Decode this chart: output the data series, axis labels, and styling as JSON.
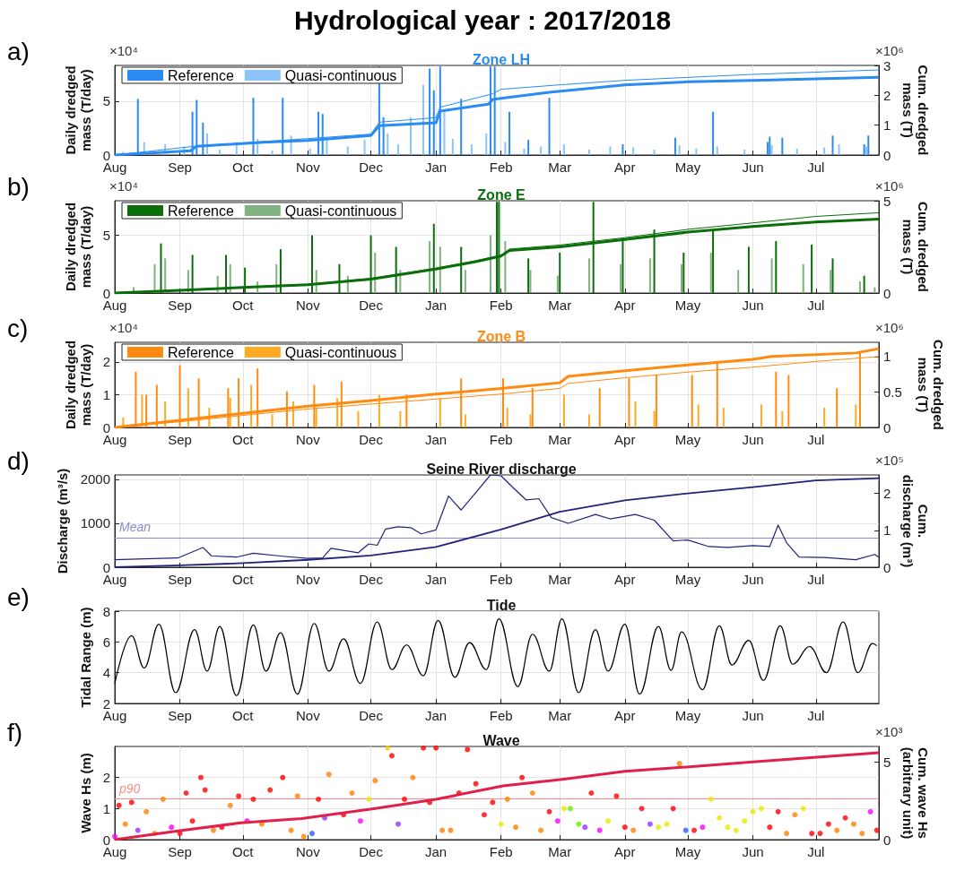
{
  "chart_data": [
    {
      "type": "bar",
      "subtitle": "Hydrological year : 2017/2018",
      "title": "Zone LH",
      "ylabel": "Daily dredged\nmass (T/day)",
      "y2label": "Cum. dredged\nmass (T)",
      "annotations": [
        "a)",
        "×10⁴",
        "×10⁶"
      ],
      "legend": "top left",
      "grid": true,
      "xlim": [
        "2017-08-01",
        "2018-07-31"
      ],
      "xticks": [
        {
          "value": "2017-08-01",
          "label": "Aug"
        },
        {
          "value": "2017-09-01",
          "label": "Sep"
        },
        {
          "value": "2017-10-01",
          "label": "Oct"
        },
        {
          "value": "2017-11-01",
          "label": "Nov"
        },
        {
          "value": "2017-12-01",
          "label": "Dec"
        },
        {
          "value": "2018-01-01",
          "label": "Jan"
        },
        {
          "value": "2018-02-01",
          "label": "Feb"
        },
        {
          "value": "2018-03-01",
          "label": "Mar"
        },
        {
          "value": "2018-04-01",
          "label": "Apr"
        },
        {
          "value": "2018-05-01",
          "label": "May"
        },
        {
          "value": "2018-06-01",
          "label": "Jun"
        },
        {
          "value": "2018-07-01",
          "label": "Jul"
        }
      ],
      "ylim": [
        0,
        8.3
      ],
      "yticks": [
        0,
        5
      ],
      "y2lim": [
        0,
        3
      ],
      "y2ticks": [
        0,
        1,
        2,
        3
      ],
      "series": [
        {
          "name": "Reference",
          "color": "#2a8bf2",
          "x": [
            "2017-08-12",
            "2017-09-07",
            "2017-09-09",
            "2017-09-12",
            "2017-10-06",
            "2017-10-20",
            "2017-11-06",
            "2017-11-08",
            "2017-12-05",
            "2017-12-07",
            "2017-12-29",
            "2017-12-31",
            "2018-01-03",
            "2018-01-13",
            "2018-01-27",
            "2018-01-29",
            "2018-02-05",
            "2018-02-14",
            "2018-02-24",
            "2018-03-31",
            "2018-04-25",
            "2018-05-13",
            "2018-06-08",
            "2018-06-09",
            "2018-06-15",
            "2018-07-09",
            "2018-07-24",
            "2018-07-26"
          ],
          "values": [
            5.2,
            4.0,
            5.1,
            3.0,
            5.3,
            5.3,
            4.0,
            3.8,
            8.2,
            3.5,
            8.0,
            6.0,
            8.2,
            5.2,
            8.2,
            8.2,
            4.0,
            1.4,
            5.3,
            1.0,
            1.6,
            4.0,
            1.2,
            1.7,
            1.6,
            1.8,
            1.0,
            1.8
          ]
        },
        {
          "name": "Quasi-continuous",
          "color": "#8cc4f8",
          "x": [
            "2017-08-05",
            "2017-08-15",
            "2017-08-25",
            "2017-09-03",
            "2017-09-14",
            "2017-09-20",
            "2017-09-28",
            "2017-10-08",
            "2017-10-15",
            "2017-10-24",
            "2017-11-02",
            "2017-11-10",
            "2017-11-20",
            "2017-11-28",
            "2017-12-09",
            "2017-12-14",
            "2017-12-20",
            "2017-12-26",
            "2018-01-05",
            "2018-01-09",
            "2018-01-18",
            "2018-01-25",
            "2018-02-03",
            "2018-02-12",
            "2018-02-20",
            "2018-03-03",
            "2018-03-15",
            "2018-03-25",
            "2018-04-05",
            "2018-04-15",
            "2018-04-27",
            "2018-05-05",
            "2018-05-15",
            "2018-05-28",
            "2018-06-10",
            "2018-06-22",
            "2018-07-05",
            "2018-07-12",
            "2018-07-25"
          ],
          "values": [
            0.3,
            1.2,
            1.0,
            0.8,
            2.0,
            0.5,
            1.2,
            1.5,
            0.4,
            1.8,
            0.6,
            1.5,
            0.8,
            1.4,
            2.0,
            1.0,
            3.5,
            6.5,
            4.0,
            1.5,
            1.0,
            2.0,
            1.2,
            0.6,
            0.8,
            1.0,
            0.5,
            0.8,
            0.7,
            0.5,
            0.9,
            0.6,
            0.8,
            0.5,
            0.9,
            0.6,
            0.7,
            1.0,
            0.8
          ]
        },
        {
          "type": "line",
          "axis": "y2",
          "color": "#2a8bf2",
          "x": [
            "2017-08-01",
            "2017-09-06",
            "2017-09-09",
            "2017-10-11",
            "2017-11-01",
            "2017-12-01",
            "2017-12-05",
            "2018-01-01",
            "2018-01-03",
            "2018-01-26",
            "2018-01-28",
            "2018-02-01",
            "2018-02-24",
            "2018-04-01",
            "2018-05-01",
            "2018-06-01",
            "2018-07-31"
          ],
          "values": [
            0,
            0.14,
            0.29,
            0.43,
            0.49,
            0.65,
            0.98,
            1.08,
            1.47,
            1.7,
            1.86,
            1.9,
            2.1,
            2.35,
            2.45,
            2.5,
            2.6
          ]
        },
        {
          "type": "line",
          "axis": "y2",
          "color": "#2a8bf2",
          "x": [
            "2017-08-01",
            "2017-09-09",
            "2017-11-01",
            "2017-12-01",
            "2017-12-05",
            "2018-01-01",
            "2018-01-03",
            "2018-01-28",
            "2018-02-01",
            "2018-03-01",
            "2018-04-01",
            "2018-05-01",
            "2018-06-01",
            "2018-07-31"
          ],
          "values": [
            0,
            0.3,
            0.55,
            0.7,
            1.1,
            1.25,
            1.6,
            2.05,
            2.2,
            2.35,
            2.5,
            2.6,
            2.7,
            2.85
          ]
        }
      ]
    },
    {
      "type": "bar",
      "title": "Zone E",
      "ylabel": "Daily dredged\nmass (T/day)",
      "y2label": "Cum. dredged\nmass (T)",
      "annotations": [
        "b)",
        "×10⁴",
        "×10⁶"
      ],
      "legend": "top left",
      "grid": true,
      "xlim": [
        "2017-08-01",
        "2018-07-31"
      ],
      "xticks": [
        {
          "value": "2017-08-01",
          "label": "Aug"
        },
        {
          "value": "2017-09-01",
          "label": "Sep"
        },
        {
          "value": "2017-10-01",
          "label": "Oct"
        },
        {
          "value": "2017-11-01",
          "label": "Nov"
        },
        {
          "value": "2017-12-01",
          "label": "Dec"
        },
        {
          "value": "2018-01-01",
          "label": "Jan"
        },
        {
          "value": "2018-02-01",
          "label": "Feb"
        },
        {
          "value": "2018-03-01",
          "label": "Mar"
        },
        {
          "value": "2018-04-01",
          "label": "Apr"
        },
        {
          "value": "2018-05-01",
          "label": "May"
        },
        {
          "value": "2018-06-01",
          "label": "Jun"
        },
        {
          "value": "2018-07-01",
          "label": "Jul"
        }
      ],
      "ylim": [
        0,
        8
      ],
      "yticks": [
        0,
        5
      ],
      "y2lim": [
        0,
        5
      ],
      "y2ticks": [
        0,
        5
      ],
      "series": [
        {
          "name": "Reference",
          "color": "#0a6e0a",
          "x": [
            "2017-08-23",
            "2017-09-07",
            "2017-09-23",
            "2017-10-02",
            "2017-10-19",
            "2017-11-03",
            "2017-11-16",
            "2017-12-01",
            "2017-12-13",
            "2017-12-31",
            "2018-01-13",
            "2018-01-30",
            "2018-01-31",
            "2018-02-14",
            "2018-03-01",
            "2018-03-17",
            "2018-03-31",
            "2018-04-15",
            "2018-04-29",
            "2018-05-13",
            "2018-05-30",
            "2018-06-12",
            "2018-06-29",
            "2018-07-09",
            "2018-07-24"
          ],
          "values": [
            4.3,
            3.3,
            3.3,
            2.2,
            3.8,
            5.0,
            2.5,
            5.0,
            4.0,
            6.0,
            4.0,
            7.9,
            7.9,
            3.0,
            3.5,
            7.9,
            4.5,
            5.5,
            3.5,
            5.5,
            4.0,
            4.5,
            4.2,
            3.0,
            1.5
          ]
        },
        {
          "name": "Quasi-continuous",
          "color": "#7fb27f",
          "x": [
            "2017-08-10",
            "2017-08-20",
            "2017-08-25",
            "2017-09-05",
            "2017-09-19",
            "2017-09-25",
            "2017-10-08",
            "2017-10-17",
            "2017-11-05",
            "2017-11-20",
            "2017-12-03",
            "2017-12-15",
            "2017-12-29",
            "2018-01-03",
            "2018-01-15",
            "2018-01-27",
            "2018-02-03",
            "2018-02-15",
            "2018-02-28",
            "2018-03-15",
            "2018-03-30",
            "2018-04-13",
            "2018-04-28",
            "2018-05-12",
            "2018-05-25",
            "2018-06-10",
            "2018-06-25",
            "2018-07-08",
            "2018-07-22",
            "2018-07-29"
          ],
          "values": [
            0.5,
            2.5,
            3.0,
            2.0,
            1.5,
            2.5,
            1.0,
            2.5,
            2.0,
            1.5,
            3.5,
            2.0,
            4.5,
            4.0,
            2.0,
            5.0,
            4.5,
            2.0,
            1.5,
            3.0,
            2.5,
            3.0,
            2.5,
            3.5,
            2.0,
            3.0,
            2.5,
            2.0,
            1.0,
            0.5
          ]
        },
        {
          "type": "line",
          "axis": "y2",
          "color": "#0a6e0a",
          "x": [
            "2017-08-01",
            "2017-09-01",
            "2017-10-01",
            "2017-11-01",
            "2017-12-01",
            "2018-01-01",
            "2018-01-20",
            "2018-02-01",
            "2018-02-05",
            "2018-03-01",
            "2018-04-01",
            "2018-05-01",
            "2018-06-01",
            "2018-07-01",
            "2018-07-31"
          ],
          "values": [
            0,
            0.15,
            0.3,
            0.45,
            0.75,
            1.3,
            1.7,
            2.0,
            2.3,
            2.5,
            2.9,
            3.3,
            3.6,
            3.85,
            4.0
          ]
        },
        {
          "type": "line",
          "axis": "y2",
          "color": "#0a6e0a",
          "x": [
            "2017-08-01",
            "2017-09-01",
            "2017-10-01",
            "2017-11-01",
            "2017-12-01",
            "2018-01-01",
            "2018-01-20",
            "2018-02-01",
            "2018-02-05",
            "2018-03-01",
            "2018-04-01",
            "2018-05-01",
            "2018-06-01",
            "2018-07-01",
            "2018-07-31"
          ],
          "values": [
            0,
            0.16,
            0.32,
            0.48,
            0.79,
            1.35,
            1.75,
            2.05,
            2.38,
            2.6,
            3.0,
            3.45,
            3.8,
            4.15,
            4.35
          ]
        }
      ]
    },
    {
      "type": "bar",
      "title": "Zone B",
      "ylabel": "Daily dredged\nmass (T/day)",
      "y2label": "Cum. dredged\nmass (T)",
      "annotations": [
        "c)",
        "×10⁴",
        "×10⁶"
      ],
      "legend": "top left",
      "grid": true,
      "xlim": [
        "2017-08-01",
        "2018-07-31"
      ],
      "xticks": [
        {
          "value": "2017-08-01",
          "label": "Aug"
        },
        {
          "value": "2017-09-01",
          "label": "Sep"
        },
        {
          "value": "2017-10-01",
          "label": "Oct"
        },
        {
          "value": "2017-11-01",
          "label": "Nov"
        },
        {
          "value": "2017-12-01",
          "label": "Dec"
        },
        {
          "value": "2018-01-01",
          "label": "Jan"
        },
        {
          "value": "2018-02-01",
          "label": "Feb"
        },
        {
          "value": "2018-03-01",
          "label": "Mar"
        },
        {
          "value": "2018-04-01",
          "label": "Apr"
        },
        {
          "value": "2018-05-01",
          "label": "May"
        },
        {
          "value": "2018-06-01",
          "label": "Jun"
        },
        {
          "value": "2018-07-01",
          "label": "Jul"
        }
      ],
      "ylim": [
        0,
        2.6
      ],
      "yticks": [
        0,
        1,
        2
      ],
      "y2lim": [
        0,
        1.2
      ],
      "y2ticks": [
        0,
        0.5,
        1
      ],
      "series": [
        {
          "name": "Reference",
          "color": "#ff8a10",
          "x": [
            "2017-08-11",
            "2017-08-16",
            "2017-08-21",
            "2017-09-01",
            "2017-09-10",
            "2017-09-24",
            "2017-09-29",
            "2017-10-08",
            "2017-10-22",
            "2017-11-04",
            "2017-11-17",
            "2017-12-03",
            "2017-12-18",
            "2018-01-02",
            "2018-01-13",
            "2018-02-02",
            "2018-02-16",
            "2018-02-28",
            "2018-03-02",
            "2018-03-20",
            "2018-04-03",
            "2018-04-16",
            "2018-05-03",
            "2018-05-15",
            "2018-06-12",
            "2018-06-18",
            "2018-07-11",
            "2018-07-22"
          ],
          "values": [
            1.7,
            1.0,
            1.3,
            1.9,
            1.5,
            1.2,
            1.5,
            1.8,
            1.1,
            1.3,
            1.4,
            null,
            1.0,
            null,
            1.5,
            1.5,
            1.2,
            null,
            null,
            1.2,
            1.5,
            1.6,
            1.6,
            2.0,
            1.7,
            1.6,
            1.2,
            2.3
          ]
        },
        {
          "name": "Quasi-continuous",
          "color": "#ffaa22",
          "x": [
            "2017-08-05",
            "2017-08-14",
            "2017-08-25",
            "2017-09-05",
            "2017-09-15",
            "2017-09-25",
            "2017-10-05",
            "2017-10-15",
            "2017-10-25",
            "2017-11-05",
            "2017-11-15",
            "2017-11-25",
            "2017-12-05",
            "2017-12-15",
            "2018-01-03",
            "2018-01-15",
            "2018-02-04",
            "2018-02-15",
            "2018-03-03",
            "2018-03-15",
            "2018-04-06",
            "2018-04-15",
            "2018-05-06",
            "2018-05-18",
            "2018-06-05",
            "2018-06-15",
            "2018-07-05",
            "2018-07-20"
          ],
          "values": [
            0.3,
            1.0,
            0.8,
            1.2,
            0.6,
            0.9,
            1.3,
            0.4,
            0.8,
            0.6,
            0.9,
            0.5,
            1.0,
            0.5,
            0.9,
            0.4,
            0.6,
            0.4,
            1.0,
            0.4,
            0.8,
            0.5,
            0.7,
            0.6,
            0.7,
            0.5,
            0.6,
            0.7
          ]
        },
        {
          "type": "line",
          "axis": "y2",
          "color": "#ff8a10",
          "x": [
            "2017-08-01",
            "2017-09-01",
            "2017-10-01",
            "2017-11-01",
            "2017-12-01",
            "2018-01-01",
            "2018-02-01",
            "2018-03-01",
            "2018-03-05",
            "2018-04-01",
            "2018-05-01",
            "2018-06-01",
            "2018-06-10",
            "2018-07-20",
            "2018-07-31"
          ],
          "values": [
            0,
            0.1,
            0.2,
            0.3,
            0.38,
            0.47,
            0.55,
            0.63,
            0.72,
            0.8,
            0.88,
            0.96,
            1.0,
            1.05,
            1.11
          ]
        },
        {
          "type": "line",
          "axis": "y2",
          "color": "#ff8a10",
          "x": [
            "2017-08-01",
            "2017-09-01",
            "2017-10-01",
            "2017-11-01",
            "2017-12-01",
            "2018-01-01",
            "2018-02-01",
            "2018-03-01",
            "2018-03-05",
            "2018-04-01",
            "2018-05-01",
            "2018-06-01",
            "2018-07-01",
            "2018-07-31"
          ],
          "values": [
            0,
            0.08,
            0.17,
            0.26,
            0.33,
            0.4,
            0.47,
            0.55,
            0.62,
            0.7,
            0.78,
            0.85,
            0.93,
            1.0
          ]
        }
      ]
    },
    {
      "type": "line",
      "title": "Seine River discharge",
      "ylabel": "Discharge (m³/s)",
      "y2label": "Cum.\ndischarge (m³)",
      "annotations": [
        "d)",
        "×10⁵"
      ],
      "grid": true,
      "xlim": [
        "2017-08-01",
        "2018-07-31"
      ],
      "xticks": [
        {
          "value": "2017-08-01",
          "label": "Aug"
        },
        {
          "value": "2017-09-01",
          "label": "Sep"
        },
        {
          "value": "2017-10-01",
          "label": "Oct"
        },
        {
          "value": "2017-11-01",
          "label": "Nov"
        },
        {
          "value": "2017-12-01",
          "label": "Dec"
        },
        {
          "value": "2018-01-01",
          "label": "Jan"
        },
        {
          "value": "2018-02-01",
          "label": "Feb"
        },
        {
          "value": "2018-03-01",
          "label": "Mar"
        },
        {
          "value": "2018-04-01",
          "label": "Apr"
        },
        {
          "value": "2018-05-01",
          "label": "May"
        },
        {
          "value": "2018-06-01",
          "label": "Jun"
        },
        {
          "value": "2018-07-01",
          "label": "Jul"
        }
      ],
      "ylim": [
        0,
        2100
      ],
      "yticks": [
        0,
        1000,
        2000
      ],
      "y2lim": [
        0,
        2.5
      ],
      "y2ticks": [
        0,
        1,
        2
      ],
      "ref_lines": [
        {
          "axis": "y",
          "value": 670,
          "label": "Mean",
          "color": "#8a8ad0"
        }
      ],
      "series": [
        {
          "color": "#23237a",
          "x": [
            "2017-08-01",
            "2017-08-15",
            "2017-08-31",
            "2017-09-12",
            "2017-09-16",
            "2017-09-28",
            "2017-10-06",
            "2017-10-20",
            "2017-11-01",
            "2017-11-08",
            "2017-11-12",
            "2017-11-25",
            "2017-11-30",
            "2017-12-04",
            "2017-12-08",
            "2017-12-14",
            "2017-12-20",
            "2017-12-25",
            "2018-01-01",
            "2018-01-07",
            "2018-01-13",
            "2018-01-20",
            "2018-01-27",
            "2018-02-01",
            "2018-02-07",
            "2018-02-13",
            "2018-02-19",
            "2018-02-25",
            "2018-03-05",
            "2018-03-18",
            "2018-03-25",
            "2018-04-06",
            "2018-04-15",
            "2018-04-24",
            "2018-05-01",
            "2018-05-11",
            "2018-05-20",
            "2018-06-01",
            "2018-06-09",
            "2018-06-13",
            "2018-06-17",
            "2018-06-23",
            "2018-07-05",
            "2018-07-20",
            "2018-07-29",
            "2018-07-31"
          ],
          "values": [
            170,
            190,
            210,
            450,
            260,
            230,
            320,
            250,
            200,
            210,
            430,
            330,
            530,
            500,
            870,
            920,
            900,
            760,
            850,
            1620,
            1300,
            1700,
            2100,
            2080,
            1800,
            1530,
            1560,
            1130,
            1000,
            1200,
            1100,
            1200,
            1070,
            600,
            620,
            470,
            450,
            490,
            470,
            960,
            560,
            230,
            220,
            170,
            290,
            230
          ]
        },
        {
          "axis": "y2",
          "color": "#23237a",
          "x": [
            "2017-08-01",
            "2017-09-01",
            "2017-10-01",
            "2017-11-01",
            "2017-12-01",
            "2018-01-01",
            "2018-02-01",
            "2018-03-01",
            "2018-04-01",
            "2018-05-01",
            "2018-06-01",
            "2018-07-01",
            "2018-07-31"
          ],
          "values": [
            0,
            0.05,
            0.11,
            0.2,
            0.32,
            0.55,
            1.02,
            1.5,
            1.81,
            2.0,
            2.17,
            2.35,
            2.41
          ]
        }
      ]
    },
    {
      "type": "line",
      "title": "Tide",
      "ylabel": "Tidal Range (m)",
      "annotations": [
        "e)"
      ],
      "grid": true,
      "xlim": [
        "2017-08-01",
        "2018-07-31"
      ],
      "xticks": [
        {
          "value": "2017-08-01",
          "label": "Aug"
        },
        {
          "value": "2017-09-01",
          "label": "Sep"
        },
        {
          "value": "2017-10-01",
          "label": "Oct"
        },
        {
          "value": "2017-11-01",
          "label": "Nov"
        },
        {
          "value": "2017-12-01",
          "label": "Dec"
        },
        {
          "value": "2018-01-01",
          "label": "Jan"
        },
        {
          "value": "2018-02-01",
          "label": "Feb"
        },
        {
          "value": "2018-03-01",
          "label": "Mar"
        },
        {
          "value": "2018-04-01",
          "label": "Apr"
        },
        {
          "value": "2018-05-01",
          "label": "May"
        },
        {
          "value": "2018-06-01",
          "label": "Jun"
        },
        {
          "value": "2018-07-01",
          "label": "Jul"
        }
      ],
      "ylim": [
        2,
        8
      ],
      "yticks": [
        2,
        4,
        6,
        8
      ],
      "series": [
        {
          "color": "#000000",
          "x": [
            "2017-08-01",
            "2017-08-09",
            "2017-08-15",
            "2017-08-22",
            "2017-08-30",
            "2017-09-08",
            "2017-09-14",
            "2017-09-20",
            "2017-09-28",
            "2017-10-06",
            "2017-10-12",
            "2017-10-19",
            "2017-10-27",
            "2017-11-04",
            "2017-11-11",
            "2017-11-18",
            "2017-11-26",
            "2017-12-04",
            "2017-12-11",
            "2017-12-18",
            "2017-12-26",
            "2018-01-02",
            "2018-01-10",
            "2018-01-17",
            "2018-01-25",
            "2018-01-31",
            "2018-02-09",
            "2018-02-16",
            "2018-02-24",
            "2018-03-02",
            "2018-03-10",
            "2018-03-18",
            "2018-03-24",
            "2018-04-01",
            "2018-04-08",
            "2018-04-17",
            "2018-04-23",
            "2018-04-28",
            "2018-05-08",
            "2018-05-16",
            "2018-05-22",
            "2018-05-30",
            "2018-06-06",
            "2018-06-14",
            "2018-06-20",
            "2018-06-28",
            "2018-07-06",
            "2018-07-14",
            "2018-07-21",
            "2018-07-28",
            "2018-07-30"
          ],
          "values": [
            3.3,
            6.4,
            4.3,
            7.15,
            2.7,
            6.8,
            4.1,
            7.0,
            2.5,
            7.1,
            4.1,
            6.6,
            2.6,
            7.2,
            4.1,
            6.2,
            3.3,
            7.3,
            4.2,
            5.8,
            3.8,
            7.4,
            3.7,
            5.95,
            4.2,
            7.5,
            3.1,
            6.5,
            4.1,
            7.5,
            2.7,
            6.8,
            4.1,
            7.15,
            2.6,
            7.0,
            4.15,
            6.65,
            2.9,
            7.05,
            4.5,
            6.1,
            3.5,
            7.05,
            4.55,
            5.7,
            4.0,
            7.3,
            4.0,
            5.9,
            5.75
          ]
        }
      ]
    },
    {
      "type": "scatter",
      "title": "Wave",
      "ylabel": "Wave Hs (m)",
      "y2label": "Cum. wave Hs\n(arbitrary unit)",
      "annotations": [
        "f)",
        "×10³"
      ],
      "grid": true,
      "xlim": [
        "2017-08-01",
        "2018-07-31"
      ],
      "xticks": [
        {
          "value": "2017-08-01",
          "label": "Aug"
        },
        {
          "value": "2017-09-01",
          "label": "Sep"
        },
        {
          "value": "2017-10-01",
          "label": "Oct"
        },
        {
          "value": "2017-11-01",
          "label": "Nov"
        },
        {
          "value": "2017-12-01",
          "label": "Dec"
        },
        {
          "value": "2018-01-01",
          "label": "Jan"
        },
        {
          "value": "2018-02-01",
          "label": "Feb"
        },
        {
          "value": "2018-03-01",
          "label": "Mar"
        },
        {
          "value": "2018-04-01",
          "label": "Apr"
        },
        {
          "value": "2018-05-01",
          "label": "May"
        },
        {
          "value": "2018-06-01",
          "label": "Jun"
        },
        {
          "value": "2018-07-01",
          "label": "Jul"
        }
      ],
      "ylim": [
        0,
        3
      ],
      "yticks": [
        0,
        1,
        2
      ],
      "y2lim": [
        0,
        6
      ],
      "y2ticks": [
        0,
        5
      ],
      "ref_lines": [
        {
          "axis": "y",
          "value": 1.31,
          "label": "p90",
          "color": "#ff8a8a"
        }
      ],
      "series": [
        {
          "marker": "circle",
          "x": [
            "2017-08-01",
            "2017-08-03",
            "2017-08-06",
            "2017-08-09",
            "2017-08-12",
            "2017-08-16",
            "2017-08-20",
            "2017-08-24",
            "2017-08-28",
            "2017-09-01",
            "2017-09-04",
            "2017-09-07",
            "2017-09-11",
            "2017-09-13",
            "2017-09-17",
            "2017-09-21",
            "2017-09-25",
            "2017-09-29",
            "2017-10-03",
            "2017-10-06",
            "2017-10-10",
            "2017-10-14",
            "2017-10-20",
            "2017-10-24",
            "2017-10-27",
            "2017-10-30",
            "2017-11-03",
            "2017-11-06",
            "2017-11-09",
            "2017-11-11",
            "2017-11-18",
            "2017-11-22",
            "2017-11-26",
            "2017-11-30",
            "2017-12-03",
            "2017-12-09",
            "2017-12-11",
            "2017-12-14",
            "2017-12-17",
            "2017-12-21",
            "2017-12-26",
            "2017-12-29",
            "2018-01-01",
            "2018-01-04",
            "2018-01-08",
            "2018-01-12",
            "2018-01-16",
            "2018-01-20",
            "2018-01-24",
            "2018-01-28",
            "2018-02-01",
            "2018-02-04",
            "2018-02-08",
            "2018-02-11",
            "2018-02-16",
            "2018-02-20",
            "2018-02-24",
            "2018-02-28",
            "2018-03-03",
            "2018-03-06",
            "2018-03-10",
            "2018-03-13",
            "2018-03-16",
            "2018-03-20",
            "2018-03-24",
            "2018-03-28",
            "2018-04-01",
            "2018-04-05",
            "2018-04-09",
            "2018-04-13",
            "2018-04-17",
            "2018-04-21",
            "2018-04-24",
            "2018-04-27",
            "2018-04-30",
            "2018-05-04",
            "2018-05-08",
            "2018-05-12",
            "2018-05-16",
            "2018-05-20",
            "2018-05-24",
            "2018-05-28",
            "2018-06-01",
            "2018-06-05",
            "2018-06-09",
            "2018-06-13",
            "2018-06-17",
            "2018-06-21",
            "2018-06-25",
            "2018-06-29",
            "2018-07-03",
            "2018-07-07",
            "2018-07-11",
            "2018-07-15",
            "2018-07-19",
            "2018-07-23",
            "2018-07-27",
            "2018-07-30"
          ],
          "values": [
            0.1,
            1.1,
            0.5,
            1.2,
            0.3,
            0.9,
            0.2,
            1.3,
            0.4,
            0.2,
            1.5,
            0.6,
            2.0,
            1.6,
            0.3,
            0.4,
            1.1,
            1.4,
            0.6,
            1.3,
            0.5,
            1.6,
            2.0,
            0.3,
            1.4,
            0.1,
            0.2,
            1.3,
            0.7,
            2.1,
            0.8,
            1.5,
            0.6,
            1.3,
            1.9,
            2.95,
            2.7,
            0.5,
            1.3,
            2.0,
            2.95,
            1.2,
            2.95,
            0.3,
            0.3,
            1.5,
            2.9,
            1.8,
            0.8,
            1.2,
            0.5,
            1.3,
            0.4,
            2.0,
            1.5,
            0.3,
            0.9,
            0.6,
            1.0,
            1.0,
            0.5,
            0.4,
            1.5,
            0.3,
            0.6,
            1.4,
            0.4,
            0.3,
            1.0,
            0.5,
            0.4,
            0.5,
            1.0,
            2.45,
            0.3,
            0.3,
            0.4,
            1.3,
            0.7,
            0.4,
            0.3,
            0.6,
            0.9,
            1.0,
            0.4,
            0.9,
            0.2,
            0.8,
            1.0,
            0.2,
            0.2,
            0.5,
            0.3,
            0.7,
            0.5,
            0.2,
            0.9,
            0.3
          ],
          "colors": [
            "#ff00ff",
            "#ff0000",
            "#ff8000",
            "#ff0000",
            "#9933ff",
            "#ff8000",
            "#ff8000",
            "#ff8000",
            "#ff00ff",
            "#ff0000",
            "#ff0000",
            "#ff0000",
            "#ff0000",
            "#ff0000",
            "#ff8000",
            "#ff0000",
            "#ff8000",
            "#ff0000",
            "#ff00ff",
            "#ff0000",
            "#ff8000",
            "#ff0000",
            "#ff0000",
            "#ff8000",
            "#ff8000",
            "#ff8000",
            "#3355ff",
            "#ff0000",
            "#9933ff",
            "#ff8000",
            "#ff0000",
            "#ff8000",
            "#ff00ff",
            "#e8e800",
            "#ff8000",
            "#f0d000",
            "#ff0000",
            "#9933ff",
            "#ff0000",
            "#ff8000",
            "#ff0000",
            "#ff0000",
            "#ff0000",
            "#ff8000",
            "#ff8000",
            "#ff0000",
            "#ff0000",
            "#ff0000",
            "#ff0000",
            "#ff0000",
            "#e8e800",
            "#ff8000",
            "#ff8000",
            "#ff0000",
            "#ff8000",
            "#ff8000",
            "#ff0000",
            "#ff00ff",
            "#e8e800",
            "#66ee00",
            "#66ee00",
            "#9933ff",
            "#ff0000",
            "#ff00ff",
            "#e8e800",
            "#ff0000",
            "#ff0000",
            "#ff8000",
            "#ff0000",
            "#9933ff",
            "#e8e800",
            "#e8e800",
            "#ff0000",
            "#ff8000",
            "#3355ff",
            "#ff0000",
            "#ff00ff",
            "#e8e800",
            "#e8e800",
            "#e8e800",
            "#e8e800",
            "#e8e800",
            "#e8e800",
            "#e8e800",
            "#ff0000",
            "#ff0000",
            "#ff8000",
            "#ff8000",
            "#e8e800",
            "#ff0000",
            "#ff0000",
            "#ff0000",
            "#ff8000",
            "#ff0000",
            "#ff8000",
            "#ff8000",
            "#ff00ff",
            "#ff0000"
          ]
        },
        {
          "type": "line",
          "axis": "y2",
          "color": "#e0204a",
          "x": [
            "2017-08-01",
            "2017-09-01",
            "2017-09-30",
            "2017-10-29",
            "2017-12-03",
            "2018-01-01",
            "2018-02-02",
            "2018-03-03",
            "2018-04-01",
            "2018-05-03",
            "2018-06-01",
            "2018-06-30",
            "2018-07-31"
          ],
          "values": [
            0,
            0.58,
            1.08,
            1.35,
            2.0,
            2.6,
            3.46,
            3.9,
            4.4,
            4.7,
            5.0,
            5.3,
            5.6
          ]
        }
      ]
    }
  ]
}
